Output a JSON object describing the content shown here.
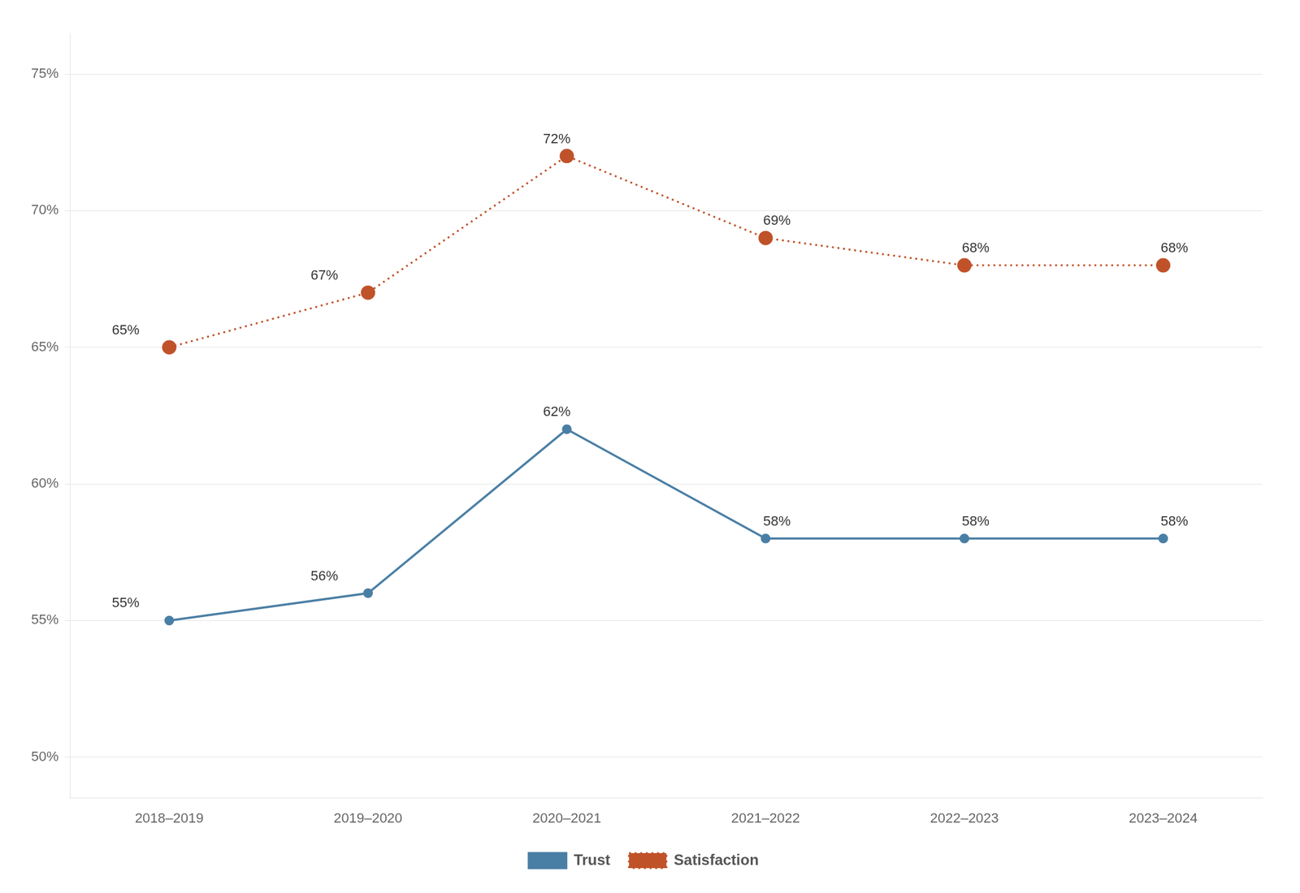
{
  "chart_data": {
    "type": "line",
    "categories": [
      "2018–2019",
      "2019–2020",
      "2020–2021",
      "2021–2022",
      "2022–2023",
      "2023–2024"
    ],
    "series": [
      {
        "name": "Trust",
        "color": "#4A7FA5",
        "marker": "circle",
        "line_style": "solid",
        "values": [
          55,
          56,
          62,
          58,
          58,
          58
        ],
        "value_labels": [
          "55%",
          "56%",
          "62%",
          "58%",
          "58%",
          "58%"
        ]
      },
      {
        "name": "Satisfaction",
        "color": "#C0522A",
        "marker": "circle",
        "line_style": "dotted",
        "values": [
          65,
          67,
          72,
          69,
          68,
          68
        ],
        "value_labels": [
          "65%",
          "67%",
          "72%",
          "69%",
          "68%",
          "68%"
        ]
      }
    ],
    "ylim": [
      48.5,
      76.5
    ],
    "yticks": [
      {
        "value": 50,
        "label": "50%"
      },
      {
        "value": 55,
        "label": "55%"
      },
      {
        "value": 60,
        "label": "60%"
      },
      {
        "value": 65,
        "label": "65%"
      },
      {
        "value": 70,
        "label": "70%"
      },
      {
        "value": 75,
        "label": "75%"
      }
    ],
    "grid": "y",
    "legend": "bottom",
    "data_labels": true
  }
}
